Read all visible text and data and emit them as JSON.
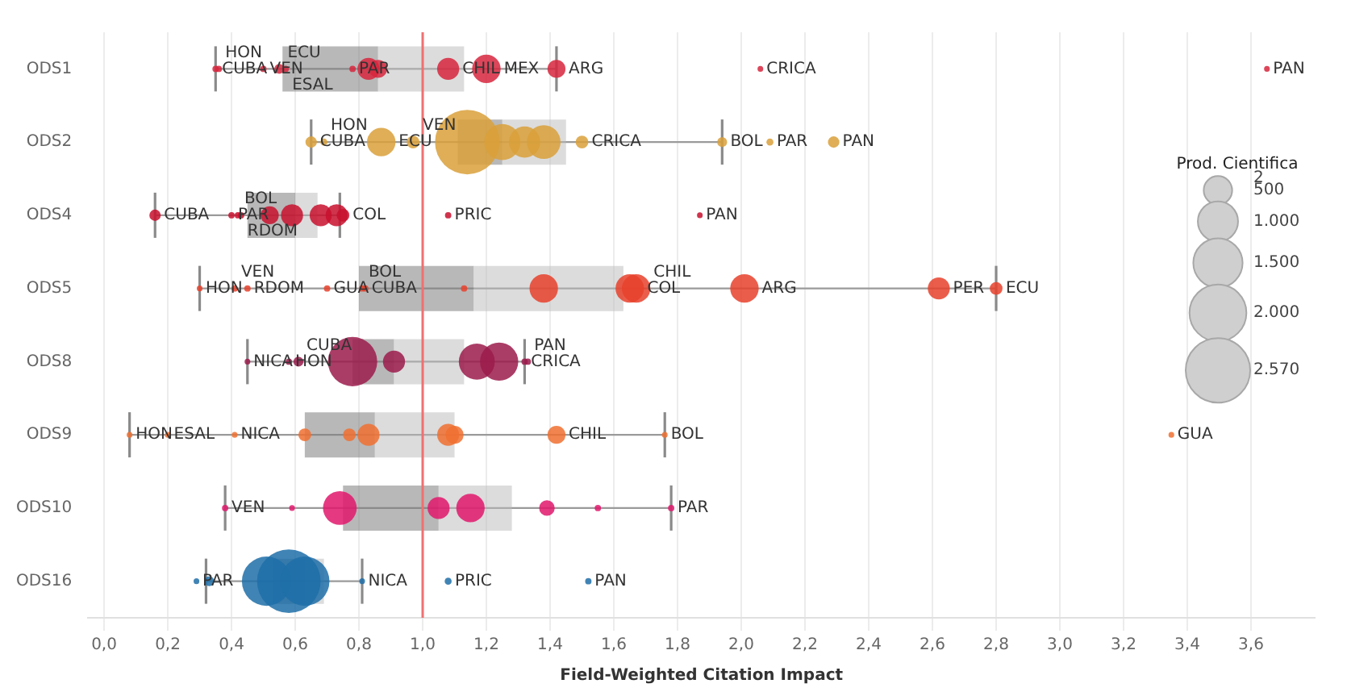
{
  "chart_data": {
    "type": "box",
    "orientation": "horizontal",
    "xlabel": "Field-Weighted Citation Impact",
    "legend_title": "Prod. Cientifica",
    "categories": [
      "ODS1",
      "ODS2",
      "ODS4",
      "ODS5",
      "ODS8",
      "ODS9",
      "ODS10",
      "ODS16"
    ],
    "boxes": [
      {
        "low": 0.35,
        "q1": 0.56,
        "median": 0.86,
        "q3": 1.13,
        "high": 1.42
      },
      {
        "low": 0.65,
        "q1": 1.11,
        "median": 1.25,
        "q3": 1.45,
        "high": 1.94
      },
      {
        "low": 0.16,
        "q1": 0.45,
        "median": 0.6,
        "q3": 0.67,
        "high": 0.74
      },
      {
        "low": 0.3,
        "q1": 0.8,
        "median": 1.16,
        "q3": 1.63,
        "high": 2.8
      },
      {
        "low": 0.45,
        "q1": 0.78,
        "median": 0.91,
        "q3": 1.13,
        "high": 1.32
      },
      {
        "low": 0.08,
        "q1": 0.63,
        "median": 0.85,
        "q3": 1.1,
        "high": 1.76
      },
      {
        "low": 0.38,
        "q1": 0.75,
        "median": 1.05,
        "q3": 1.28,
        "high": 1.78
      },
      {
        "low": 0.32,
        "q1": 0.53,
        "median": 0.63,
        "q3": 0.69,
        "high": 0.81
      }
    ],
    "series": [
      {
        "type": "bubble",
        "color": "#d7263d",
        "x": [
          "ODS1",
          "ODS1",
          "ODS1",
          "ODS1",
          "ODS1",
          "ODS1",
          "ODS1",
          "ODS1",
          "ODS1",
          "ODS1",
          "ODS1",
          "ODS1",
          "ODS1"
        ],
        "values": [
          0.35,
          0.36,
          0.5,
          0.55,
          0.57,
          0.78,
          0.83,
          0.86,
          1.08,
          1.2,
          1.42,
          2.06,
          3.65
        ],
        "sizes": [
          25,
          25,
          25,
          60,
          25,
          25,
          300,
          200,
          300,
          500,
          200,
          20,
          20
        ]
      },
      {
        "type": "bubble",
        "color": "#d9a03a",
        "x": [
          "ODS2",
          "ODS2",
          "ODS2",
          "ODS2",
          "ODS2",
          "ODS2",
          "ODS2",
          "ODS2",
          "ODS2",
          "ODS2",
          "ODS2",
          "ODS2"
        ],
        "values": [
          0.65,
          0.69,
          0.87,
          0.97,
          1.14,
          1.25,
          1.32,
          1.38,
          1.5,
          1.94,
          2.09,
          2.29
        ],
        "sizes": [
          80,
          30,
          500,
          100,
          2570,
          800,
          600,
          700,
          100,
          60,
          30,
          80
        ]
      },
      {
        "type": "bubble",
        "color": "#c8102e",
        "x": [
          "ODS4",
          "ODS4",
          "ODS4",
          "ODS4",
          "ODS4",
          "ODS4",
          "ODS4",
          "ODS4",
          "ODS4",
          "ODS4",
          "ODS4"
        ],
        "values": [
          0.16,
          0.4,
          0.42,
          0.43,
          0.52,
          0.59,
          0.68,
          0.73,
          0.75,
          1.08,
          1.87
        ],
        "sizes": [
          80,
          25,
          25,
          25,
          200,
          300,
          300,
          300,
          100,
          25,
          20
        ]
      },
      {
        "type": "bubble",
        "color": "#e8412c",
        "x": [
          "ODS5",
          "ODS5",
          "ODS5",
          "ODS5",
          "ODS5",
          "ODS5",
          "ODS5",
          "ODS5",
          "ODS5",
          "ODS5",
          "ODS5",
          "ODS5",
          "ODS5"
        ],
        "values": [
          0.3,
          0.41,
          0.45,
          0.7,
          0.81,
          0.82,
          1.13,
          1.38,
          1.65,
          1.67,
          2.01,
          2.62,
          2.8
        ],
        "sizes": [
          20,
          25,
          25,
          25,
          25,
          25,
          25,
          500,
          500,
          500,
          500,
          300,
          100
        ]
      },
      {
        "type": "bubble",
        "color": "#9b1b4b",
        "x": [
          "ODS8",
          "ODS8",
          "ODS8",
          "ODS8",
          "ODS8",
          "ODS8",
          "ODS8",
          "ODS8",
          "ODS8"
        ],
        "values": [
          0.45,
          0.58,
          0.61,
          0.78,
          0.91,
          1.17,
          1.24,
          1.32,
          1.33
        ],
        "sizes": [
          20,
          25,
          60,
          1500,
          300,
          800,
          900,
          25,
          25
        ]
      },
      {
        "type": "bubble",
        "color": "#f07030",
        "x": [
          "ODS9",
          "ODS9",
          "ODS9",
          "ODS9",
          "ODS9",
          "ODS9",
          "ODS9",
          "ODS9",
          "ODS9",
          "ODS9",
          "ODS9"
        ],
        "values": [
          0.08,
          0.2,
          0.41,
          0.63,
          0.77,
          0.83,
          1.08,
          1.1,
          1.42,
          1.76,
          3.35
        ],
        "sizes": [
          20,
          20,
          20,
          100,
          100,
          300,
          300,
          200,
          200,
          20,
          20
        ]
      },
      {
        "type": "bubble",
        "color": "#e0186c",
        "x": [
          "ODS10",
          "ODS10",
          "ODS10",
          "ODS10",
          "ODS10",
          "ODS10",
          "ODS10",
          "ODS10"
        ],
        "values": [
          0.38,
          0.59,
          0.74,
          1.05,
          1.15,
          1.39,
          1.55,
          1.78
        ],
        "sizes": [
          25,
          20,
          700,
          300,
          500,
          150,
          25,
          25
        ]
      },
      {
        "type": "bubble",
        "color": "#1f6fa8",
        "x": [
          "ODS16",
          "ODS16",
          "ODS16",
          "ODS16",
          "ODS16",
          "ODS16",
          "ODS16",
          "ODS16"
        ],
        "values": [
          0.29,
          0.33,
          0.51,
          0.58,
          0.63,
          0.81,
          1.08,
          1.52
        ],
        "sizes": [
          20,
          60,
          1500,
          2500,
          1500,
          20,
          30,
          25
        ]
      }
    ],
    "size_legend": [
      2,
      500,
      {
        "value": 1000,
        "label": "1.000"
      },
      {
        "value": 1500,
        "label": "1.500"
      },
      {
        "value": 2000,
        "label": "2.000"
      },
      {
        "value": 2570,
        "label": "2.570"
      }
    ],
    "xlim": [
      -0.05,
      3.8
    ],
    "xticks": [
      {
        "value": 0,
        "label": "0,0"
      },
      {
        "value": 0.2,
        "label": "0,2"
      },
      {
        "value": 0.4,
        "label": "0,4"
      },
      {
        "value": 0.6,
        "label": "0,6"
      },
      {
        "value": 0.8,
        "label": "0,8"
      },
      {
        "value": 1,
        "label": "1,0"
      },
      {
        "value": 1.2,
        "label": "1,2"
      },
      {
        "value": 1.4,
        "label": "1,4"
      },
      {
        "value": 1.6,
        "label": "1,6"
      },
      {
        "value": 1.8,
        "label": "1,8"
      },
      {
        "value": 2,
        "label": "2,0"
      },
      {
        "value": 2.2,
        "label": "2,2"
      },
      {
        "value": 2.4,
        "label": "2,4"
      },
      {
        "value": 2.6,
        "label": "2,6"
      },
      {
        "value": 2.8,
        "label": "2,8"
      },
      {
        "value": 3,
        "label": "3,0"
      },
      {
        "value": 3.2,
        "label": "3,2"
      },
      {
        "value": 3.4,
        "label": "3,4"
      },
      {
        "value": 3.6,
        "label": "3,6"
      }
    ],
    "grid": "x",
    "ref_lines": [
      {
        "axis": "x",
        "value": 1,
        "color": "#f07070"
      }
    ],
    "annotations": [
      {
        "text": "CUBA",
        "x": 0.35,
        "y": "ODS1"
      },
      {
        "text": "HON",
        "x": 0.36,
        "y": "ODS1"
      },
      {
        "text": "VEN",
        "x": 0.5,
        "y": "ODS1"
      },
      {
        "text": "ECU",
        "x": 0.55,
        "y": "ODS1"
      },
      {
        "text": "ESAL",
        "x": 0.57,
        "y": "ODS1"
      },
      {
        "text": "PAR",
        "x": 0.78,
        "y": "ODS1"
      },
      {
        "text": "CHIL",
        "x": 1.08,
        "y": "ODS1"
      },
      {
        "text": "MEX",
        "x": 1.2,
        "y": "ODS1"
      },
      {
        "text": "ARG",
        "x": 1.42,
        "y": "ODS1"
      },
      {
        "text": "CRICA",
        "x": 2.06,
        "y": "ODS1"
      },
      {
        "text": "PAN",
        "x": 3.65,
        "y": "ODS1"
      },
      {
        "text": "CUBA",
        "x": 0.65,
        "y": "ODS2"
      },
      {
        "text": "HON",
        "x": 0.69,
        "y": "ODS2"
      },
      {
        "text": "ECU",
        "x": 0.87,
        "y": "ODS2"
      },
      {
        "text": "VEN",
        "x": 0.97,
        "y": "ODS2"
      },
      {
        "text": "CRICA",
        "x": 1.5,
        "y": "ODS2"
      },
      {
        "text": "BOL",
        "x": 1.94,
        "y": "ODS2"
      },
      {
        "text": "PAR",
        "x": 2.09,
        "y": "ODS2"
      },
      {
        "text": "PAN",
        "x": 2.29,
        "y": "ODS2"
      },
      {
        "text": "CUBA",
        "x": 0.16,
        "y": "ODS4"
      },
      {
        "text": "PAR",
        "x": 0.4,
        "y": "ODS4"
      },
      {
        "text": "BOL",
        "x": 0.42,
        "y": "ODS4"
      },
      {
        "text": "RDOM",
        "x": 0.43,
        "y": "ODS4"
      },
      {
        "text": "COL",
        "x": 0.75,
        "y": "ODS4"
      },
      {
        "text": "PRIC",
        "x": 1.08,
        "y": "ODS4"
      },
      {
        "text": "PAN",
        "x": 1.87,
        "y": "ODS4"
      },
      {
        "text": "HON",
        "x": 0.3,
        "y": "ODS5"
      },
      {
        "text": "VEN",
        "x": 0.41,
        "y": "ODS5"
      },
      {
        "text": "RDOM",
        "x": 0.45,
        "y": "ODS5"
      },
      {
        "text": "GUA",
        "x": 0.7,
        "y": "ODS5"
      },
      {
        "text": "BOL",
        "x": 0.81,
        "y": "ODS5"
      },
      {
        "text": "CUBA",
        "x": 0.82,
        "y": "ODS5"
      },
      {
        "text": "COL",
        "x": 1.65,
        "y": "ODS5"
      },
      {
        "text": "CHIL",
        "x": 1.67,
        "y": "ODS5"
      },
      {
        "text": "ARG",
        "x": 2.01,
        "y": "ODS5"
      },
      {
        "text": "PER",
        "x": 2.62,
        "y": "ODS5"
      },
      {
        "text": "ECU",
        "x": 2.8,
        "y": "ODS5"
      },
      {
        "text": "NICA",
        "x": 0.45,
        "y": "ODS8"
      },
      {
        "text": "HON",
        "x": 0.58,
        "y": "ODS8"
      },
      {
        "text": "CUBA",
        "x": 0.61,
        "y": "ODS8"
      },
      {
        "text": "CRICA",
        "x": 1.32,
        "y": "ODS8"
      },
      {
        "text": "PAN",
        "x": 1.33,
        "y": "ODS8"
      },
      {
        "text": "HON",
        "x": 0.08,
        "y": "ODS9"
      },
      {
        "text": "ESAL",
        "x": 0.2,
        "y": "ODS9"
      },
      {
        "text": "NICA",
        "x": 0.41,
        "y": "ODS9"
      },
      {
        "text": "CHIL",
        "x": 1.42,
        "y": "ODS9"
      },
      {
        "text": "BOL",
        "x": 1.76,
        "y": "ODS9"
      },
      {
        "text": "GUA",
        "x": 3.35,
        "y": "ODS9"
      },
      {
        "text": "VEN",
        "x": 0.38,
        "y": "ODS10"
      },
      {
        "text": "PAR",
        "x": 1.78,
        "y": "ODS10"
      },
      {
        "text": "PAR",
        "x": 0.29,
        "y": "ODS16"
      },
      {
        "text": "NICA",
        "x": 0.81,
        "y": "ODS16"
      },
      {
        "text": "PRIC",
        "x": 1.08,
        "y": "ODS16"
      },
      {
        "text": "PAN",
        "x": 1.52,
        "y": "ODS16"
      }
    ]
  }
}
